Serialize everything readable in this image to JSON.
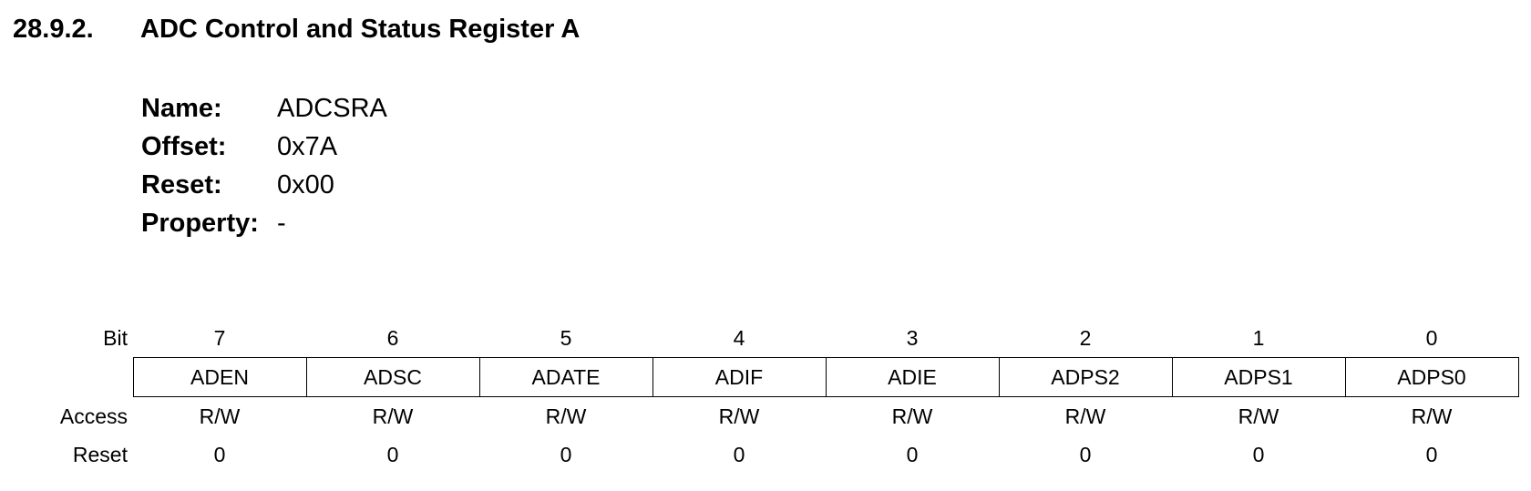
{
  "section": {
    "number": "28.9.2.",
    "title": "ADC Control and Status Register A"
  },
  "register_info": {
    "name_label": "Name:",
    "name_value": "ADCSRA",
    "offset_label": "Offset:",
    "offset_value": "0x7A",
    "reset_label": "Reset:",
    "reset_value": "0x00",
    "property_label": "Property:",
    "property_value": "-"
  },
  "bit_table": {
    "bit_label": "Bit",
    "access_label": "Access",
    "reset_label": "Reset",
    "bits": [
      "7",
      "6",
      "5",
      "4",
      "3",
      "2",
      "1",
      "0"
    ],
    "names": [
      "ADEN",
      "ADSC",
      "ADATE",
      "ADIF",
      "ADIE",
      "ADPS2",
      "ADPS1",
      "ADPS0"
    ],
    "access": [
      "R/W",
      "R/W",
      "R/W",
      "R/W",
      "R/W",
      "R/W",
      "R/W",
      "R/W"
    ],
    "reset": [
      "0",
      "0",
      "0",
      "0",
      "0",
      "0",
      "0",
      "0"
    ]
  }
}
